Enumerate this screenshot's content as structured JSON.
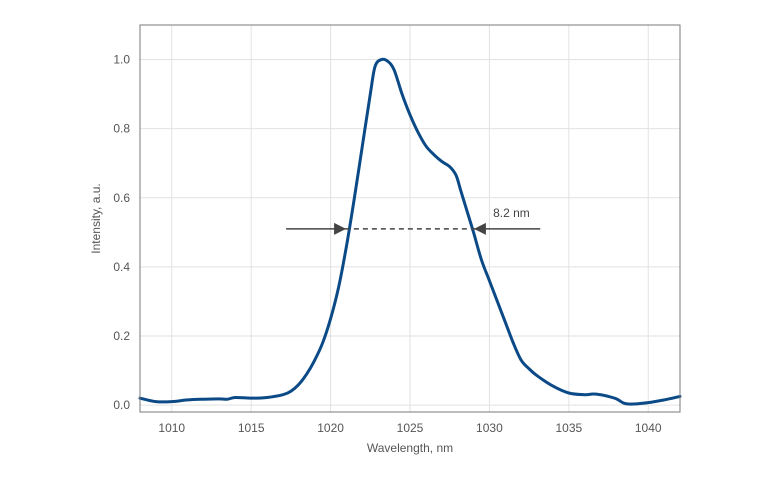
{
  "chart_data": {
    "type": "line",
    "title": "",
    "xlabel": "Wavelength, nm",
    "ylabel": "Intensity, a.u.",
    "xlim": [
      1008,
      1042
    ],
    "ylim": [
      -0.02,
      1.1
    ],
    "grid": true,
    "x_ticks": [
      1010,
      1015,
      1020,
      1025,
      1030,
      1035,
      1040
    ],
    "x_tick_labels": [
      "1010",
      "1015",
      "1020",
      "1025",
      "1030",
      "1035",
      "1040"
    ],
    "y_ticks": [
      0.0,
      0.2,
      0.4,
      0.6,
      0.8,
      1.0
    ],
    "y_tick_labels": [
      "0.0",
      "0.2",
      "0.4",
      "0.6",
      "0.8",
      "1.0"
    ],
    "series": [
      {
        "color": "#0b4a86",
        "x": [
          1008,
          1009,
          1010,
          1011,
          1012,
          1013,
          1013.5,
          1014,
          1015,
          1016,
          1017,
          1017.5,
          1018,
          1018.5,
          1019,
          1019.5,
          1020,
          1020.5,
          1021,
          1021.5,
          1022,
          1022.5,
          1022.8,
          1023.2,
          1023.6,
          1024,
          1024.5,
          1025,
          1025.5,
          1026,
          1026.5,
          1027,
          1027.5,
          1027.9,
          1028.2,
          1028.6,
          1029,
          1029.5,
          1030,
          1030.5,
          1031,
          1031.5,
          1032,
          1032.5,
          1033,
          1034,
          1035,
          1036,
          1036.5,
          1037,
          1037.5,
          1038,
          1038.5,
          1039,
          1040,
          1041,
          1042
        ],
        "y": [
          0.02,
          0.01,
          0.01,
          0.015,
          0.017,
          0.018,
          0.017,
          0.022,
          0.02,
          0.022,
          0.03,
          0.04,
          0.06,
          0.09,
          0.13,
          0.18,
          0.25,
          0.34,
          0.46,
          0.6,
          0.75,
          0.9,
          0.98,
          1.0,
          0.995,
          0.97,
          0.9,
          0.84,
          0.79,
          0.75,
          0.725,
          0.705,
          0.69,
          0.665,
          0.62,
          0.56,
          0.5,
          0.42,
          0.36,
          0.3,
          0.24,
          0.18,
          0.13,
          0.105,
          0.085,
          0.055,
          0.035,
          0.03,
          0.032,
          0.03,
          0.025,
          0.018,
          0.005,
          0.003,
          0.007,
          0.015,
          0.025
        ]
      }
    ],
    "annotations": [
      {
        "type": "fwhm",
        "label": "8.2 nm",
        "y": 0.51,
        "x_start": 1020.9,
        "x_end": 1029.1,
        "arrow_left_from": 1017.2,
        "arrow_right_from": 1033.2
      }
    ],
    "colors": {
      "line": "#0b4a86",
      "grid": "#e2e2e2",
      "frame": "#7a7a7a",
      "annotation": "#444444"
    }
  }
}
